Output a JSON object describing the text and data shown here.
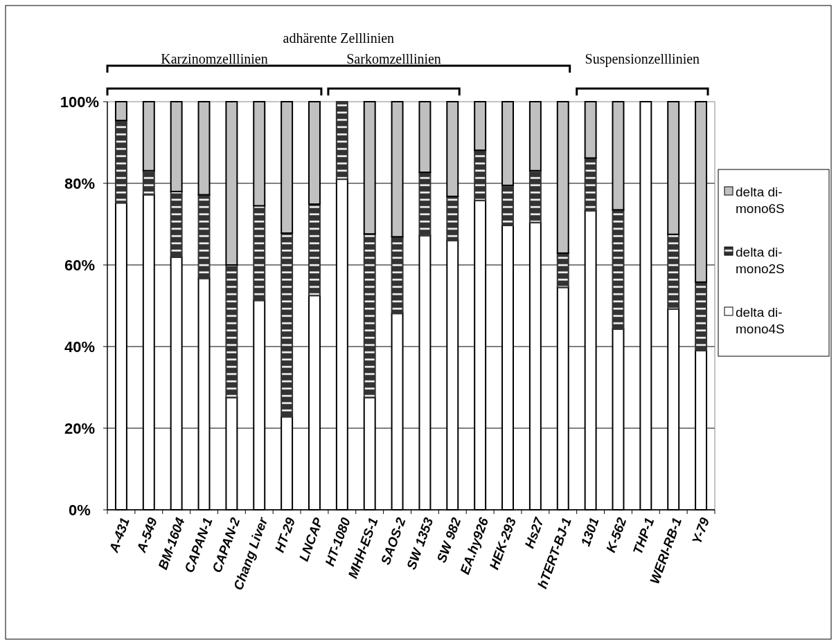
{
  "chart_data": {
    "type": "bar",
    "stacked": true,
    "categories": [
      "A-431",
      "A-549",
      "BM-1604",
      "CAPAN-1",
      "CAPAN-2",
      "Chang Liver",
      "HT-29",
      "LNCAP",
      "HT-1080",
      "MHH-ES-1",
      "SAOS-2",
      "SW 1353",
      "SW 982",
      "EA.hy926",
      "HEK-293",
      "Hs27",
      "hTERT-BJ-1",
      "1301",
      "K-562",
      "THP-1",
      "WERI-RB-1",
      "Y-79"
    ],
    "series": [
      {
        "name": "delta di-mono4S",
        "color": "#ffffff",
        "values": [
          75.2,
          77.2,
          61.9,
          56.7,
          27.5,
          51.3,
          22.8,
          52.5,
          81.0,
          27.5,
          48.1,
          67.2,
          66.0,
          75.8,
          69.7,
          70.4,
          54.5,
          73.3,
          44.3,
          100,
          49.2,
          39.0
        ]
      },
      {
        "name": "delta di-mono2S",
        "color": "#333333",
        "values": [
          20.2,
          5.9,
          16.1,
          20.5,
          32.5,
          23.2,
          45.0,
          22.4,
          19.0,
          40.1,
          18.8,
          15.5,
          10.8,
          12.3,
          9.8,
          12.7,
          8.4,
          12.9,
          29.2,
          0,
          18.3,
          16.8
        ]
      },
      {
        "name": "delta di-mono6S",
        "color": "#c0c0c0",
        "values": [
          4.6,
          16.9,
          22.0,
          22.8,
          40.0,
          25.5,
          32.2,
          25.1,
          0,
          32.4,
          33.1,
          17.3,
          23.2,
          11.9,
          20.5,
          16.9,
          37.1,
          13.8,
          26.5,
          0,
          32.5,
          44.2
        ]
      }
    ],
    "ylim": [
      0,
      100
    ],
    "yticks": [
      {
        "value": 0,
        "label": "0%"
      },
      {
        "value": 20,
        "label": "20%"
      },
      {
        "value": 40,
        "label": "40%"
      },
      {
        "value": 60,
        "label": "60%"
      },
      {
        "value": 80,
        "label": "80%"
      },
      {
        "value": 100,
        "label": "100%"
      }
    ],
    "grid": "y",
    "legend": "right",
    "annotations": [
      "adhärente Zelllinien",
      "Karzinomzelllinien",
      "Sarkomzelllinien",
      "Suspensionzelllinien"
    ]
  }
}
